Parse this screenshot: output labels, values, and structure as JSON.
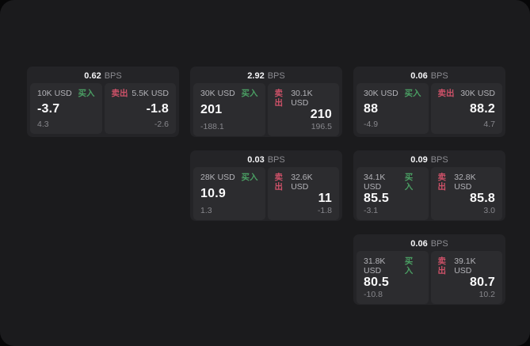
{
  "labels": {
    "buy": "买入",
    "sell": "卖出",
    "bps_unit": "BPS"
  },
  "colors": {
    "page_bg": "#070708",
    "panel_bg": "#1b1b1d",
    "card_bg": "#242427",
    "tile_bg": "#2c2c2f",
    "buy_green": "#4a9e63",
    "sell_red": "#cd5168"
  },
  "cards": [
    {
      "bps": "0.62",
      "row": 1,
      "col": 1,
      "buy": {
        "amount": "10K USD",
        "value": "-3.7",
        "sub": "4.3"
      },
      "sell": {
        "amount": "5.5K USD",
        "value": "-1.8",
        "sub": "-2.6"
      }
    },
    {
      "bps": "2.92",
      "row": 1,
      "col": 2,
      "buy": {
        "amount": "30K USD",
        "value": "201",
        "sub": "-188.1"
      },
      "sell": {
        "amount": "30.1K USD",
        "value": "210",
        "sub": "196.5"
      }
    },
    {
      "bps": "0.06",
      "row": 1,
      "col": 3,
      "buy": {
        "amount": "30K USD",
        "value": "88",
        "sub": "-4.9"
      },
      "sell": {
        "amount": "30K USD",
        "value": "88.2",
        "sub": "4.7"
      }
    },
    {
      "bps": "0.03",
      "row": 2,
      "col": 2,
      "buy": {
        "amount": "28K USD",
        "value": "10.9",
        "sub": "1.3"
      },
      "sell": {
        "amount": "32.6K USD",
        "value": "11",
        "sub": "-1.8"
      }
    },
    {
      "bps": "0.09",
      "row": 2,
      "col": 3,
      "buy": {
        "amount": "34.1K USD",
        "value": "85.5",
        "sub": "-3.1"
      },
      "sell": {
        "amount": "32.8K USD",
        "value": "85.8",
        "sub": "3.0"
      }
    },
    {
      "bps": "0.06",
      "row": 3,
      "col": 3,
      "buy": {
        "amount": "31.8K USD",
        "value": "80.5",
        "sub": "-10.8"
      },
      "sell": {
        "amount": "39.1K USD",
        "value": "80.7",
        "sub": "10.2"
      }
    }
  ]
}
